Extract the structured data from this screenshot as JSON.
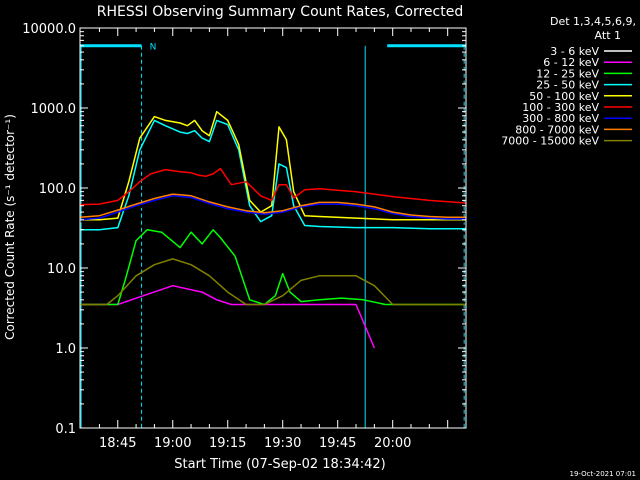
{
  "chart_data": {
    "type": "line",
    "title": "RHESSI Observing Summary Count Rates, Corrected",
    "xlabel": "Start Time (07-Sep-02 18:34:42)",
    "ylabel": "Corrected Count Rate (s⁻¹ detector⁻¹)",
    "y_scale": "log",
    "ylim": [
      0.1,
      10000
    ],
    "xlim_minutes": [
      34.7,
      140.0
    ],
    "x_ticks": [
      {
        "label": "18:45",
        "minute": 45
      },
      {
        "label": "19:00",
        "minute": 60
      },
      {
        "label": "19:15",
        "minute": 75
      },
      {
        "label": "19:30",
        "minute": 90
      },
      {
        "label": "19:45",
        "minute": 105
      },
      {
        "label": "20:00",
        "minute": 120
      }
    ],
    "y_ticks": [
      {
        "label": "10000.0",
        "value": 10000
      },
      {
        "label": "1000.0",
        "value": 1000
      },
      {
        "label": "100.0",
        "value": 100
      },
      {
        "label": "10.0",
        "value": 10
      },
      {
        "label": "1.0",
        "value": 1
      },
      {
        "label": "0.1",
        "value": 0.1
      }
    ],
    "legend": {
      "header1": "Det 1,3,4,5,6,9,",
      "header2": "Att 1",
      "placement": "outside-right"
    },
    "markers": {
      "night_label": "N",
      "night_bars_minutes": [
        [
          34.7,
          51.5
        ],
        [
          118.5,
          140.0
        ]
      ],
      "dashed_lines_minutes": [
        51.5,
        139.5
      ],
      "solid_lines_minutes": [
        35.0,
        112.5
      ],
      "level": 6000,
      "color": "#00e0ff"
    },
    "footer_date": "19-Oct-2021 07:01",
    "series": [
      {
        "name": "3 - 6 keV",
        "color": "#000000",
        "x": [
          34.7,
          40,
          45,
          50,
          55,
          60,
          65,
          70,
          75,
          80,
          85,
          90,
          95,
          100,
          105,
          110,
          115,
          120,
          125,
          130,
          135,
          140
        ],
        "y": [
          38,
          40,
          45,
          55,
          65,
          78,
          75,
          62,
          52,
          47,
          45,
          48,
          55,
          60,
          60,
          57,
          52,
          45,
          40,
          38,
          38,
          38
        ]
      },
      {
        "name": "6 - 12 keV",
        "color": "#ff00ff",
        "x": [
          34.7,
          45,
          52,
          60,
          68,
          72,
          76,
          80,
          84,
          88,
          92,
          96,
          100,
          106,
          110,
          115
        ],
        "y": [
          3.5,
          3.5,
          4.5,
          6,
          5,
          4,
          3.5,
          3.5,
          3.5,
          3.5,
          3.5,
          3.5,
          3.5,
          3.5,
          3.5,
          1.0
        ]
      },
      {
        "name": "12 - 25 keV",
        "color": "#00ff00",
        "x": [
          34.7,
          45,
          47,
          50,
          53,
          57,
          62,
          65,
          68,
          71,
          73,
          77,
          81,
          85,
          88,
          90,
          92,
          95,
          100,
          106,
          112,
          118,
          125,
          140
        ],
        "y": [
          3.5,
          3.5,
          7,
          22,
          30,
          28,
          18,
          28,
          20,
          30,
          24,
          14,
          4,
          3.5,
          4.5,
          8.5,
          5,
          3.8,
          4,
          4.2,
          4,
          3.5,
          3.5,
          3.5
        ]
      },
      {
        "name": "25 - 50 keV",
        "color": "#00ffff",
        "x": [
          34.7,
          40,
          45,
          48,
          51,
          55,
          58,
          62,
          64,
          66,
          68,
          70,
          72,
          75,
          78,
          81,
          84,
          87,
          89,
          91,
          93,
          96,
          100,
          110,
          120,
          130,
          140
        ],
        "y": [
          30,
          30,
          32,
          80,
          300,
          700,
          600,
          500,
          480,
          520,
          420,
          380,
          700,
          620,
          300,
          60,
          38,
          45,
          200,
          180,
          60,
          34,
          33,
          32,
          32,
          31,
          31
        ]
      },
      {
        "name": "50 - 100 keV",
        "color": "#ffff00",
        "x": [
          34.7,
          40,
          45,
          48,
          51,
          55,
          58,
          62,
          64,
          66,
          68,
          70,
          72,
          75,
          78,
          81,
          84,
          87,
          89,
          91,
          93,
          96,
          100,
          110,
          120,
          130,
          140
        ],
        "y": [
          40,
          40,
          42,
          120,
          420,
          780,
          700,
          650,
          600,
          700,
          520,
          450,
          900,
          700,
          350,
          70,
          50,
          60,
          580,
          400,
          90,
          45,
          44,
          42,
          40,
          40,
          40
        ]
      },
      {
        "name": "100 - 300 keV",
        "color": "#ff0000",
        "x": [
          34.7,
          40,
          45,
          48,
          51,
          54,
          58,
          62,
          65,
          67,
          69,
          71,
          73,
          76,
          80,
          84,
          87,
          89,
          91,
          93,
          96,
          100,
          110,
          120,
          130,
          140
        ],
        "y": [
          62,
          63,
          70,
          90,
          120,
          150,
          170,
          160,
          155,
          145,
          140,
          150,
          175,
          110,
          120,
          80,
          70,
          110,
          110,
          75,
          95,
          98,
          90,
          78,
          70,
          65
        ]
      },
      {
        "name": "300 - 800 keV",
        "color": "#0000ff",
        "x": [
          34.7,
          40,
          45,
          50,
          55,
          60,
          65,
          70,
          75,
          80,
          85,
          90,
          95,
          100,
          105,
          110,
          115,
          120,
          125,
          130,
          135,
          140
        ],
        "y": [
          40,
          42,
          50,
          60,
          70,
          80,
          76,
          64,
          55,
          50,
          47,
          50,
          58,
          63,
          63,
          60,
          55,
          48,
          44,
          42,
          41,
          41
        ]
      },
      {
        "name": "800 - 7000 keV",
        "color": "#ff8000",
        "x": [
          34.7,
          40,
          45,
          50,
          55,
          60,
          65,
          70,
          75,
          80,
          85,
          90,
          95,
          100,
          105,
          110,
          115,
          120,
          125,
          130,
          135,
          140
        ],
        "y": [
          43,
          45,
          53,
          63,
          74,
          84,
          80,
          67,
          58,
          52,
          49,
          52,
          60,
          66,
          66,
          63,
          58,
          50,
          46,
          44,
          43,
          43
        ]
      },
      {
        "name": "7000 - 15000 keV",
        "color": "#808000",
        "x": [
          34.7,
          42,
          45,
          50,
          55,
          60,
          65,
          70,
          75,
          80,
          85,
          90,
          95,
          100,
          105,
          110,
          115,
          120,
          125,
          140
        ],
        "y": [
          3.5,
          3.5,
          4.5,
          8,
          11,
          13,
          11,
          8,
          5,
          3.5,
          3.5,
          4.5,
          7,
          8,
          8,
          8,
          6,
          3.5,
          3.5,
          3.5
        ]
      }
    ]
  }
}
